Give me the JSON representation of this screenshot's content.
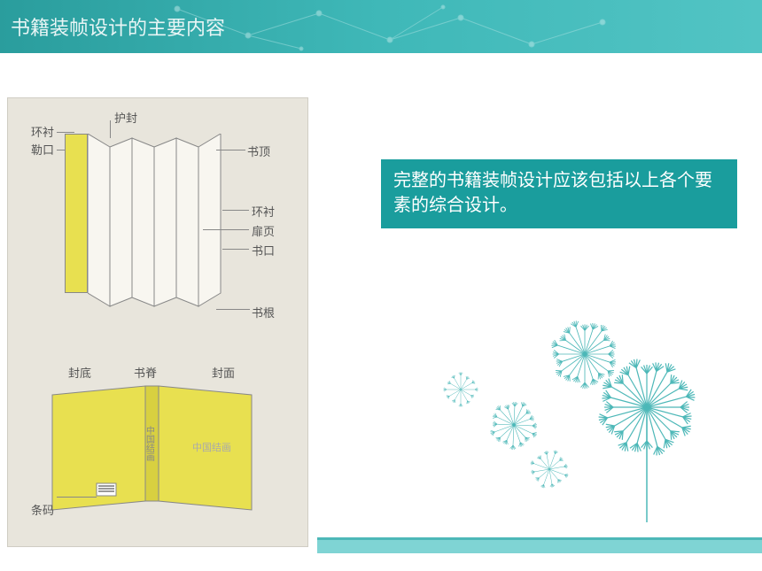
{
  "header": {
    "title": "书籍装帧设计的主要内容",
    "bg_start": "#2a9d9d",
    "bg_end": "#52c4c4",
    "text_color": "#e8f5f5"
  },
  "textbox": {
    "content": "完整的书籍装帧设计应该包括以上各个要素的综合设计。",
    "bg_color": "#1a9d9d",
    "text_color": "#ffffff",
    "font_size": 20
  },
  "diagram": {
    "top_labels": {
      "hufeng": "护封",
      "huanchen_left": "环衬",
      "lekou": "勒口",
      "shuding": "书顶",
      "huanchen_right": "环衬",
      "feiye": "扉页",
      "shukou": "书口",
      "shugen": "书根"
    },
    "bottom_labels": {
      "fengdi": "封底",
      "shuji": "书脊",
      "fengmian": "封面",
      "tiaoma": "条码",
      "cover_text": "中国结画"
    },
    "page_color": "#f8f6f0",
    "spine_color": "#e8e050",
    "bg_color": "#e8e5dc"
  },
  "decorations": {
    "dandelion_color": "#4db8b8",
    "band_color": "#7fd4d4"
  }
}
